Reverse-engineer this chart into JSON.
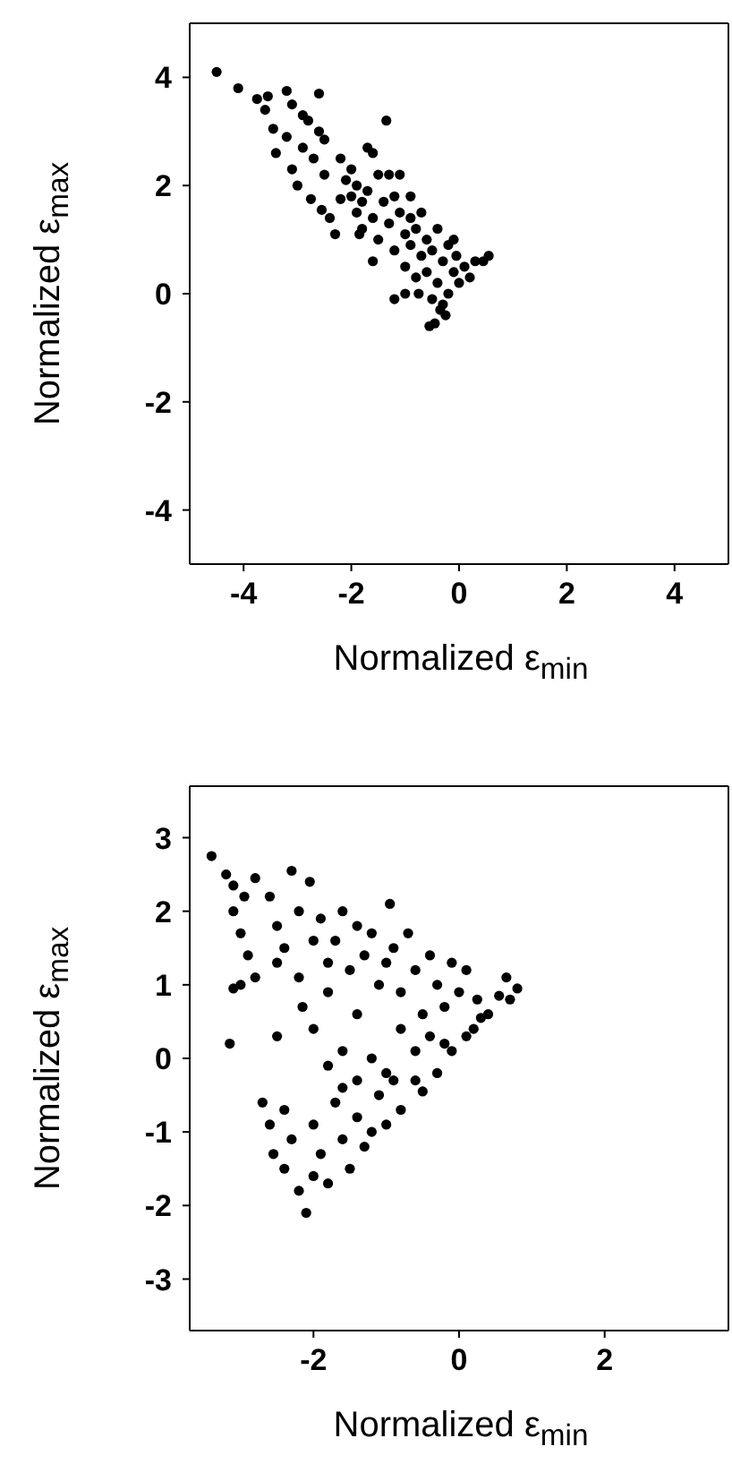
{
  "chart_data": [
    {
      "type": "scatter",
      "xlabel": "Normalized ε$_{min}$",
      "ylabel": "Normalized ε$_{max}$",
      "xlim": [
        -5,
        5
      ],
      "ylim": [
        -5,
        5
      ],
      "xticks": [
        -4,
        -2,
        0,
        2,
        4
      ],
      "yticks": [
        -4,
        -2,
        0,
        2,
        4
      ],
      "marker": "circle",
      "series": [
        {
          "color": "#000000",
          "x": [
            -4.5,
            -4.1,
            -3.75,
            -3.6,
            -3.55,
            -3.45,
            -3.4,
            -3.2,
            -3.1,
            -3.2,
            -3.1,
            -3.0,
            -2.9,
            -2.8,
            -2.9,
            -2.7,
            -2.6,
            -2.6,
            -2.5,
            -2.75,
            -2.55,
            -2.5,
            -2.4,
            -2.3,
            -2.2,
            -2.1,
            -2.0,
            -2.0,
            -1.9,
            -1.9,
            -1.8,
            -1.8,
            -1.7,
            -1.7,
            -1.6,
            -1.6,
            -1.6,
            -1.5,
            -1.5,
            -1.4,
            -1.35,
            -1.3,
            -1.3,
            -1.2,
            -1.2,
            -1.1,
            -1.1,
            -1.0,
            -1.0,
            -0.9,
            -0.9,
            -0.9,
            -0.8,
            -0.8,
            -0.75,
            -0.7,
            -0.7,
            -0.6,
            -0.6,
            -0.5,
            -0.5,
            -0.45,
            -0.4,
            -0.4,
            -0.3,
            -0.3,
            -0.2,
            -0.2,
            -0.1,
            -0.1,
            -0.05,
            0.0,
            0.1,
            0.2,
            0.3,
            0.45,
            0.55,
            -1.0,
            -1.2,
            -0.55,
            -0.35,
            -0.25,
            -1.85,
            -2.2
          ],
          "values": [
            4.1,
            3.8,
            3.6,
            3.4,
            3.65,
            3.05,
            2.6,
            3.75,
            3.5,
            2.9,
            2.3,
            2.0,
            3.3,
            3.2,
            2.7,
            2.5,
            3.7,
            3.0,
            2.85,
            1.75,
            1.55,
            2.2,
            1.4,
            1.1,
            2.5,
            2.1,
            1.8,
            2.3,
            1.5,
            2.0,
            1.2,
            1.7,
            2.7,
            1.9,
            2.6,
            1.4,
            0.6,
            2.2,
            1.0,
            1.7,
            3.2,
            2.2,
            1.3,
            0.8,
            1.8,
            2.2,
            1.5,
            1.1,
            0.5,
            1.8,
            0.9,
            1.4,
            0.3,
            1.2,
            0.0,
            0.7,
            1.5,
            1.0,
            0.4,
            -0.1,
            0.8,
            -0.55,
            0.2,
            1.2,
            0.6,
            -0.2,
            0.9,
            0.0,
            0.4,
            1.0,
            0.7,
            0.2,
            0.5,
            0.3,
            0.6,
            0.6,
            0.7,
            0.0,
            -0.1,
            -0.6,
            -0.3,
            -0.4,
            1.1,
            1.75
          ]
        }
      ]
    },
    {
      "type": "scatter",
      "xlabel": "Normalized ε$_{min}$",
      "ylabel": "Normalized ε$_{max}$",
      "xlim": [
        -3.7,
        3.7
      ],
      "ylim": [
        -3.7,
        3.7
      ],
      "xticks": [
        -2,
        0,
        2
      ],
      "yticks": [
        -3,
        -2,
        -1,
        0,
        1,
        2,
        3
      ],
      "marker": "circle",
      "series": [
        {
          "color": "#000000",
          "x": [
            -3.4,
            -3.2,
            -3.1,
            -2.95,
            -2.8,
            -3.1,
            -3.0,
            -2.9,
            -3.0,
            -3.1,
            -2.8,
            -3.15,
            -2.6,
            -2.5,
            -2.5,
            -2.4,
            -2.3,
            -2.2,
            -2.2,
            -2.15,
            -2.05,
            -2.0,
            -1.9,
            -1.8,
            -1.8,
            -1.7,
            -1.6,
            -1.5,
            -1.4,
            -1.4,
            -1.3,
            -1.2,
            -1.1,
            -1.0,
            -0.95,
            -0.9,
            -0.8,
            -0.7,
            -0.6,
            -0.5,
            -0.4,
            -0.3,
            -0.2,
            -0.1,
            0.0,
            0.1,
            0.25,
            0.4,
            0.55,
            0.65,
            0.8,
            0.7,
            -2.5,
            -2.0,
            -1.8,
            -1.6,
            -1.4,
            -1.2,
            -1.0,
            -0.8,
            -0.6,
            -0.4,
            -0.2,
            0.1,
            0.3,
            -2.7,
            -2.6,
            -2.55,
            -2.4,
            -2.4,
            -2.3,
            -2.2,
            -2.1,
            -2.0,
            -2.0,
            -1.9,
            -1.8,
            -1.7,
            -1.6,
            -1.5,
            -1.4,
            -1.3,
            -1.1,
            -1.0,
            -0.8,
            -0.6,
            -0.5,
            -0.3,
            -0.1,
            0.2,
            -1.2,
            -1.6,
            -0.9
          ],
          "values": [
            2.75,
            2.5,
            2.35,
            2.2,
            2.45,
            2.0,
            1.7,
            1.4,
            1.0,
            0.95,
            1.1,
            0.2,
            2.2,
            1.8,
            1.3,
            1.5,
            2.55,
            2.0,
            1.1,
            0.7,
            2.4,
            1.6,
            1.9,
            1.3,
            0.9,
            1.6,
            2.0,
            1.2,
            1.8,
            0.6,
            1.4,
            1.7,
            1.0,
            1.3,
            2.1,
            1.5,
            0.9,
            1.7,
            1.2,
            0.6,
            1.4,
            1.0,
            0.7,
            1.3,
            0.9,
            1.2,
            0.8,
            0.6,
            0.85,
            1.1,
            0.95,
            0.8,
            0.3,
            0.4,
            -0.1,
            0.1,
            -0.3,
            0.0,
            -0.2,
            0.4,
            0.1,
            0.3,
            0.2,
            0.3,
            0.55,
            -0.6,
            -0.9,
            -1.3,
            -1.5,
            -0.7,
            -1.1,
            -1.8,
            -2.1,
            -1.6,
            -0.9,
            -1.3,
            -1.7,
            -0.6,
            -1.1,
            -1.5,
            -0.8,
            -1.2,
            -0.5,
            -0.9,
            -0.7,
            -0.3,
            -0.45,
            -0.2,
            0.1,
            0.4,
            -1.0,
            -0.4,
            -0.3
          ]
        }
      ]
    }
  ]
}
